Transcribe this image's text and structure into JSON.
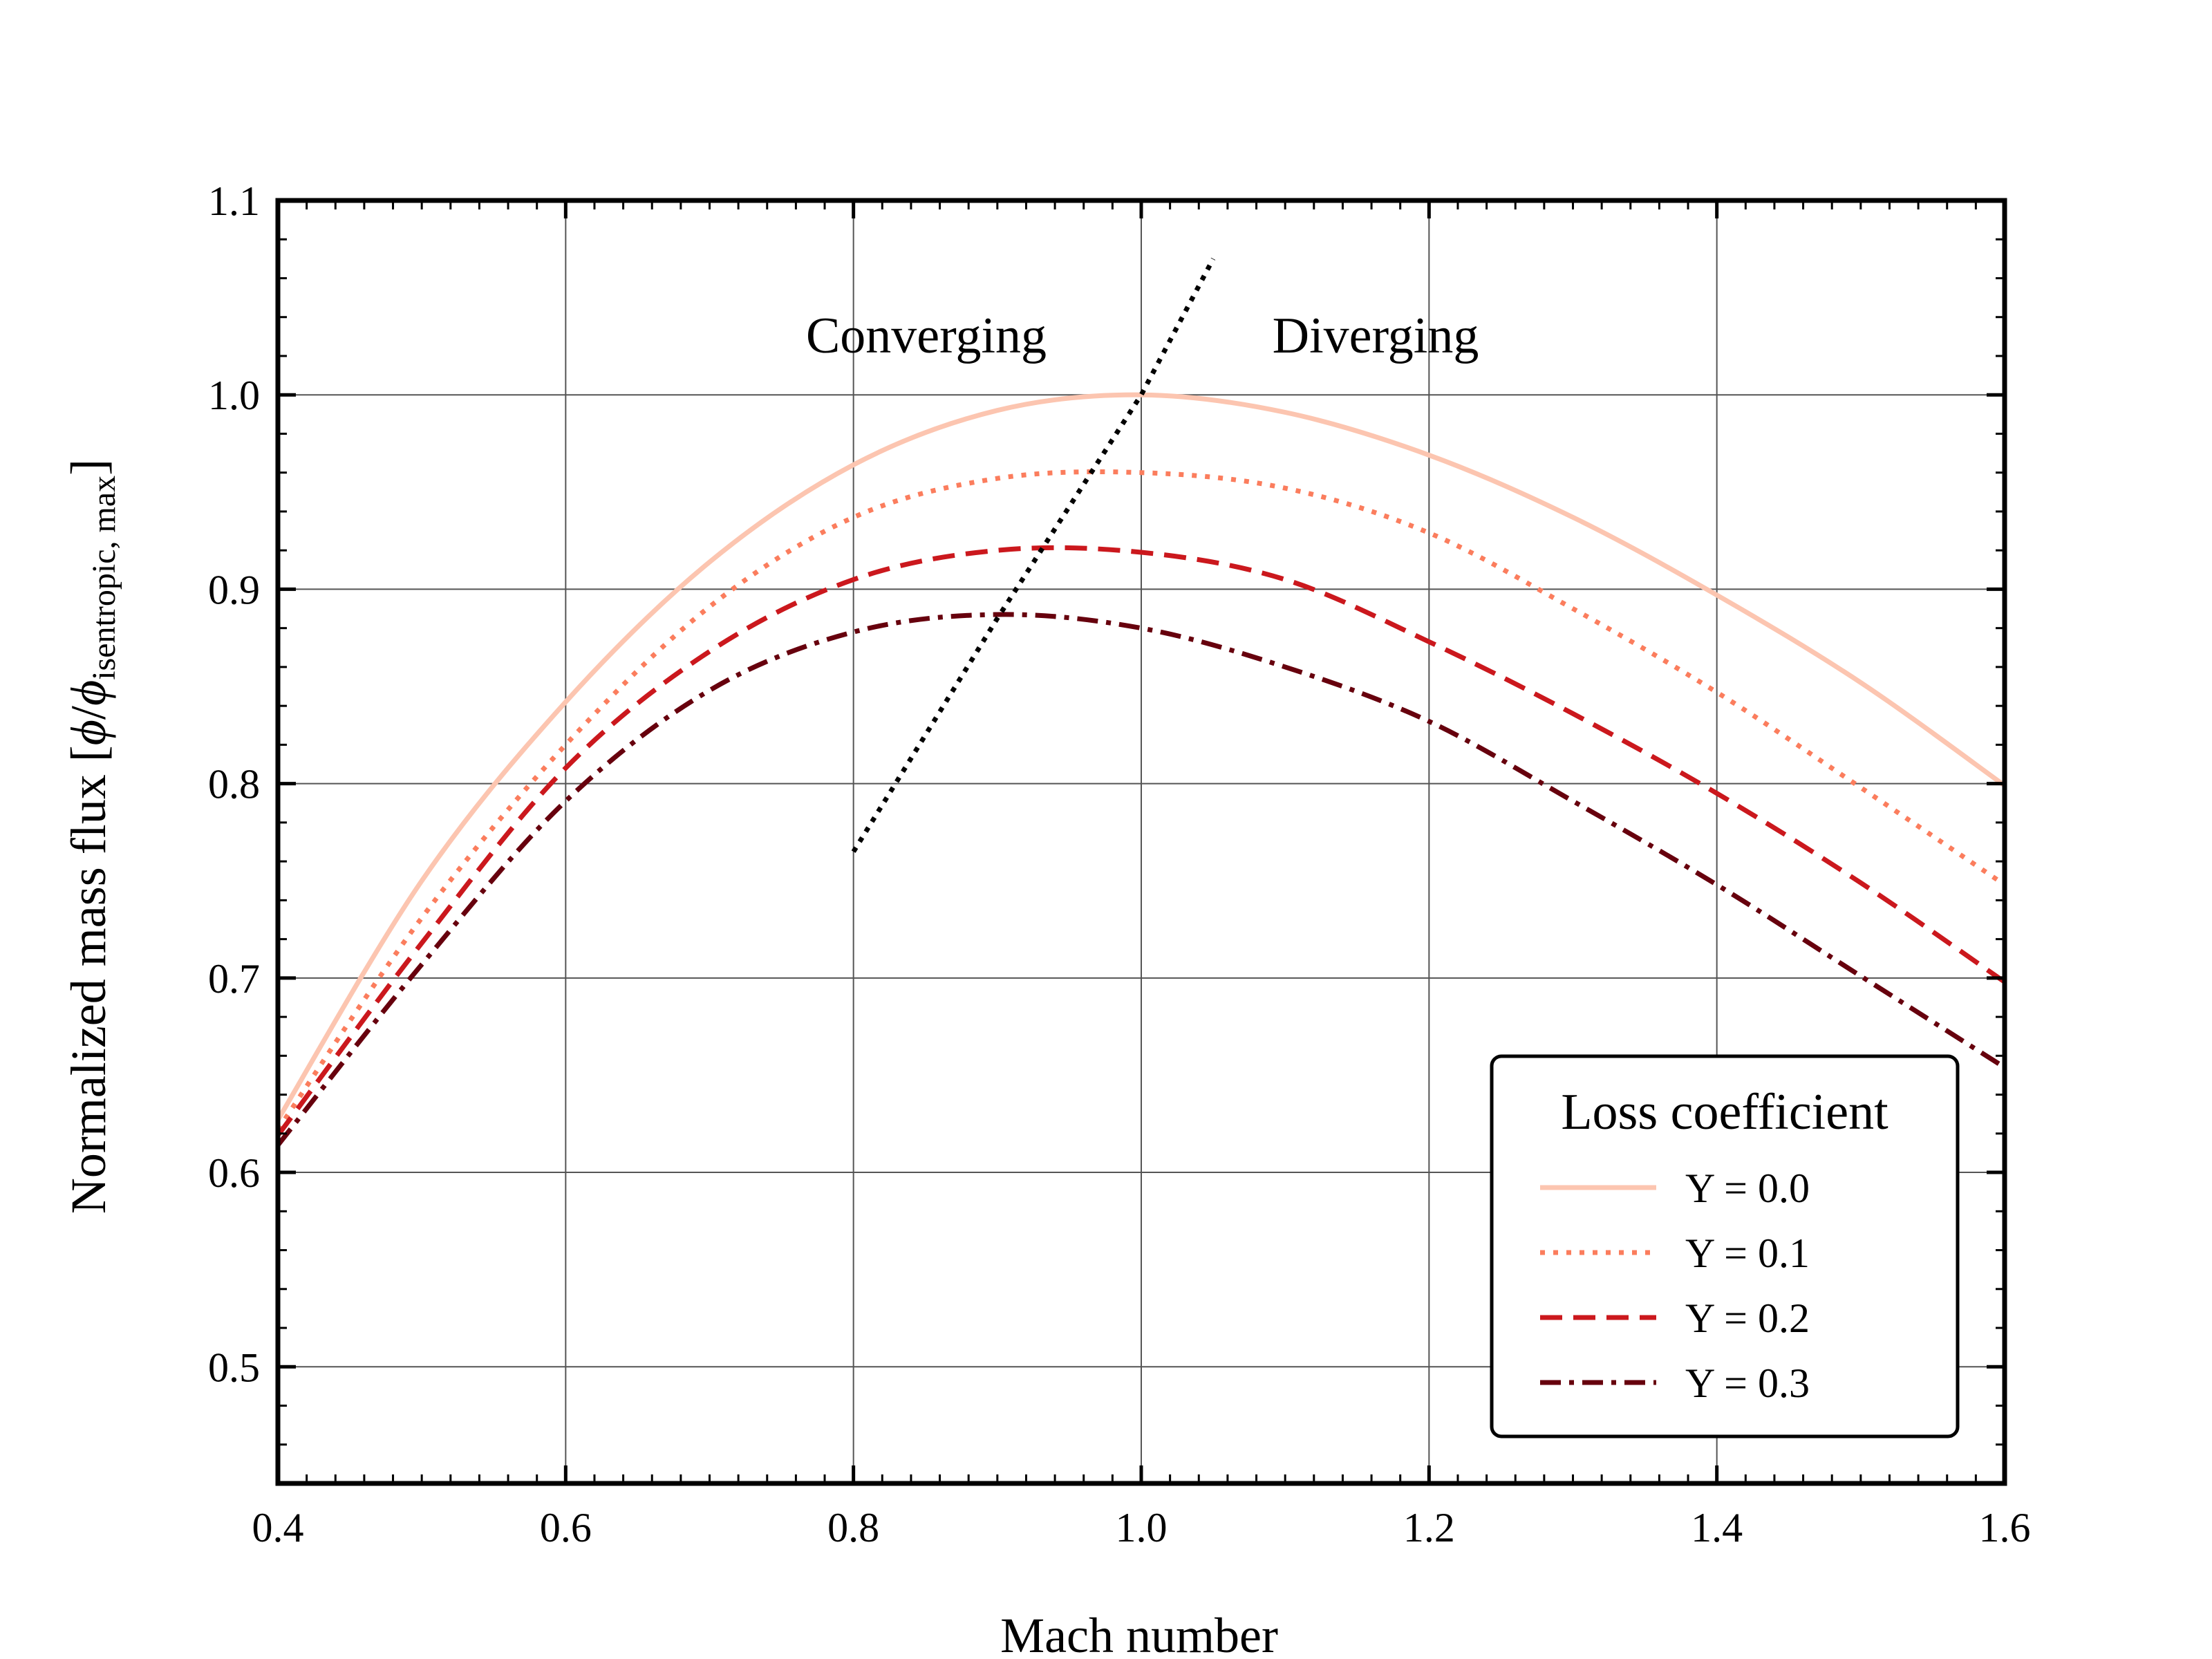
{
  "chart_data": {
    "type": "line",
    "title": "",
    "xlabel": "Mach number",
    "ylabel_main": "Normalized mass flux [",
    "ylabel_phi": "ϕ",
    "ylabel_sep": "/",
    "ylabel_phi2": "ϕ",
    "ylabel_sub": "isentropic, max",
    "ylabel_close": "]",
    "xlim": [
      0.4,
      1.6
    ],
    "ylim": [
      0.44,
      1.1
    ],
    "xticks": [
      "0.4",
      "0.6",
      "0.8",
      "1.0",
      "1.2",
      "1.4",
      "1.6"
    ],
    "yticks": [
      "0.5",
      "0.6",
      "0.7",
      "0.8",
      "0.9",
      "1.0",
      "1.1"
    ],
    "grid": true,
    "annotations": {
      "converging": "Converging",
      "diverging": "Diverging"
    },
    "legend": {
      "title": "Loss coefficient",
      "placement": "lower-right"
    },
    "x": [
      0.4,
      0.5,
      0.6,
      0.7,
      0.8,
      0.9,
      1.0,
      1.1,
      1.2,
      1.3,
      1.4,
      1.5,
      1.6
    ],
    "series": [
      {
        "name": "Y = 0.0",
        "color": "#fcc5b0",
        "style": "solid",
        "values": [
          0.627,
          0.75,
          0.842,
          0.914,
          0.964,
          0.992,
          1.0,
          0.991,
          0.969,
          0.937,
          0.897,
          0.852,
          0.799
        ]
      },
      {
        "name": "Y = 0.1",
        "color": "#fb7d5d",
        "style": "dotted",
        "values": [
          0.622,
          0.731,
          0.82,
          0.891,
          0.937,
          0.957,
          0.96,
          0.952,
          0.929,
          0.89,
          0.847,
          0.798,
          0.748
        ]
      },
      {
        "name": "Y = 0.2",
        "color": "#cb181d",
        "style": "dashed",
        "values": [
          0.619,
          0.718,
          0.808,
          0.868,
          0.905,
          0.92,
          0.919,
          0.905,
          0.873,
          0.836,
          0.795,
          0.749,
          0.698
        ]
      },
      {
        "name": "Y = 0.3",
        "color": "#67000d",
        "style": "dashdot",
        "values": [
          0.614,
          0.707,
          0.791,
          0.848,
          0.878,
          0.887,
          0.88,
          0.86,
          0.832,
          0.791,
          0.748,
          0.701,
          0.654
        ]
      }
    ],
    "boundary_line": {
      "color": "#000000",
      "style": "dotted",
      "x": [
        0.8,
        0.9,
        1.0,
        1.05
      ],
      "y": [
        0.765,
        0.885,
        1.0,
        1.07
      ]
    }
  }
}
